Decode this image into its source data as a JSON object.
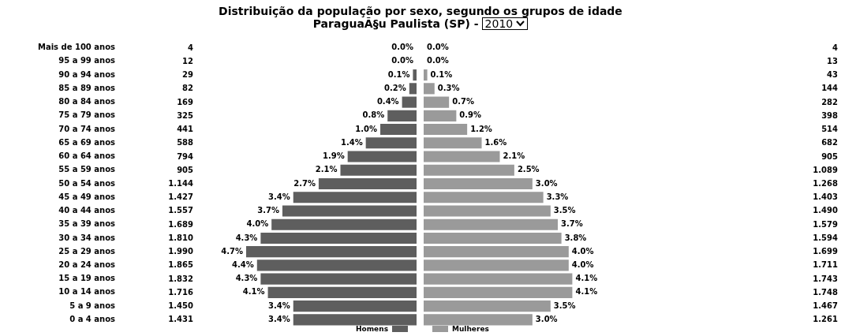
{
  "chart_data": [
    {
      "type": "bar",
      "orientation": "horizontal",
      "title": "Distribuição da população por sexo, segundo os grupos de idade",
      "subtitle": "ParaguaÃ§u Paulista (SP) -",
      "annotations": [
        "2010"
      ],
      "categories": [
        "Mais de 100 anos",
        "95 a 99 anos",
        "90 a 94 anos",
        "85 a 89 anos",
        "80 a 84 anos",
        "75 a 79 anos",
        "70 a 74 anos",
        "65 a 69 anos",
        "60 a 64 anos",
        "55 a 59 anos",
        "50 a 54 anos",
        "45 a 49 anos",
        "40 a 44 anos",
        "35 a 39 anos",
        "30 a 34 anos",
        "25 a 29 anos",
        "20 a 24 anos",
        "15 a 19 anos",
        "10 a 14 anos",
        "5 a 9 anos",
        "0 a 4 anos"
      ],
      "series": [
        {
          "name": "Homens",
          "color": "#5e5e5e",
          "values": [
            0.0,
            0.0,
            0.1,
            0.2,
            0.4,
            0.8,
            1.0,
            1.4,
            1.9,
            2.1,
            2.7,
            3.4,
            3.7,
            4.0,
            4.3,
            4.7,
            4.4,
            4.3,
            4.1,
            3.4,
            3.4
          ],
          "value_labels": [
            "0.0%",
            "0.0%",
            "0.1%",
            "0.2%",
            "0.4%",
            "0.8%",
            "1.0%",
            "1.4%",
            "1.9%",
            "2.1%",
            "2.7%",
            "3.4%",
            "3.7%",
            "4.0%",
            "4.3%",
            "4.7%",
            "4.4%",
            "4.3%",
            "4.1%",
            "3.4%",
            "3.4%"
          ]
        }
      ],
      "legend": "bottom",
      "tick_labels": "y"
    },
    {
      "type": "bar",
      "orientation": "horizontal",
      "series": [
        {
          "name": "Mulheres",
          "color": "#9a9a9a",
          "values": [
            0.0,
            0.0,
            0.1,
            0.3,
            0.7,
            0.9,
            1.2,
            1.6,
            2.1,
            2.5,
            3.0,
            3.3,
            3.5,
            3.7,
            3.8,
            4.0,
            4.0,
            4.1,
            4.1,
            3.5,
            3.0
          ],
          "value_labels": [
            "0.0%",
            "0.0%",
            "0.1%",
            "0.3%",
            "0.7%",
            "0.9%",
            "1.2%",
            "1.6%",
            "2.1%",
            "2.5%",
            "3.0%",
            "3.3%",
            "3.5%",
            "3.7%",
            "3.8%",
            "4.0%",
            "4.0%",
            "4.1%",
            "4.1%",
            "3.5%",
            "3.0%"
          ]
        }
      ],
      "legend": "bottom",
      "tick_labels": false
    },
    {
      "type": "other",
      "annotations": [
        "4",
        "12",
        "29",
        "82",
        "169",
        "325",
        "441",
        "588",
        "794",
        "905",
        "1.144",
        "1.427",
        "1.557",
        "1.689",
        "1.810",
        "1.990",
        "1.865",
        "1.832",
        "1.716",
        "1.450",
        "1.431"
      ]
    },
    {
      "type": "other",
      "annotations": [
        "4",
        "13",
        "43",
        "144",
        "282",
        "398",
        "514",
        "682",
        "905",
        "1.089",
        "1.268",
        "1.403",
        "1.490",
        "1.579",
        "1.594",
        "1.699",
        "1.711",
        "1.743",
        "1.748",
        "1.467",
        "1.261"
      ]
    }
  ]
}
